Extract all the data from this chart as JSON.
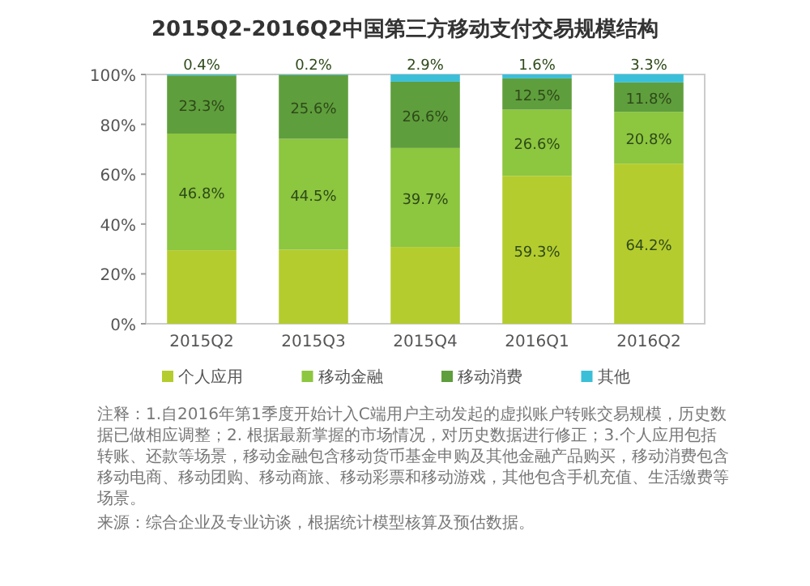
{
  "chart_data": {
    "type": "bar",
    "stacked": true,
    "title": "2015Q2-2016Q2中国第三方移动支付交易规模结构",
    "categories": [
      "2015Q2",
      "2015Q3",
      "2015Q4",
      "2016Q1",
      "2016Q2"
    ],
    "series": [
      {
        "name": "个人应用",
        "color": "#b5cc2e",
        "values": [
          29.5,
          29.7,
          30.8,
          59.3,
          64.2
        ],
        "value_labels": [
          null,
          null,
          null,
          "59.3%",
          "64.2%"
        ]
      },
      {
        "name": "移动金融",
        "color": "#8dc63f",
        "values": [
          46.8,
          44.5,
          39.7,
          26.6,
          20.8
        ],
        "value_labels": [
          "46.8%",
          "44.5%",
          "39.7%",
          "26.6%",
          "20.8%"
        ]
      },
      {
        "name": "移动消费",
        "color": "#5f9e3c",
        "values": [
          23.3,
          25.6,
          26.6,
          12.5,
          11.8
        ],
        "value_labels": [
          "23.3%",
          "25.6%",
          "26.6%",
          "12.5%",
          "11.8%"
        ]
      },
      {
        "name": "其他",
        "color": "#3bbfd8",
        "values": [
          0.4,
          0.2,
          2.9,
          1.6,
          3.3
        ],
        "value_labels": [
          "0.4%",
          "0.2%",
          "2.9%",
          "1.6%",
          "3.3%"
        ]
      }
    ],
    "ylim": [
      0,
      100
    ],
    "yticks": [
      {
        "value": 0,
        "label": "0%"
      },
      {
        "value": 20,
        "label": "20%"
      },
      {
        "value": 40,
        "label": "40%"
      },
      {
        "value": 60,
        "label": "60%"
      },
      {
        "value": 80,
        "label": "80%"
      },
      {
        "value": 100,
        "label": "100%"
      }
    ],
    "grid": false,
    "legend": "bottom",
    "annotations": [
      "注释：1.自2016年第1季度开始计入C端用户主动发起的虚拟账户转账交易规模，历史数据已做相应调整；2. 根据最新掌握的市场情况，对历史数据进行修正；3.个人应用包括转账、还款等场景，移动金融包含移动货币基金申购及其他金融产品购买，移动消费包含移动电商、移动团购、移动商旅、移动彩票和移动游戏，其他包含手机充值、生活缴费等场景。",
      "来源：综合企业及专业访谈，根据统计模型核算及预估数据。"
    ]
  }
}
